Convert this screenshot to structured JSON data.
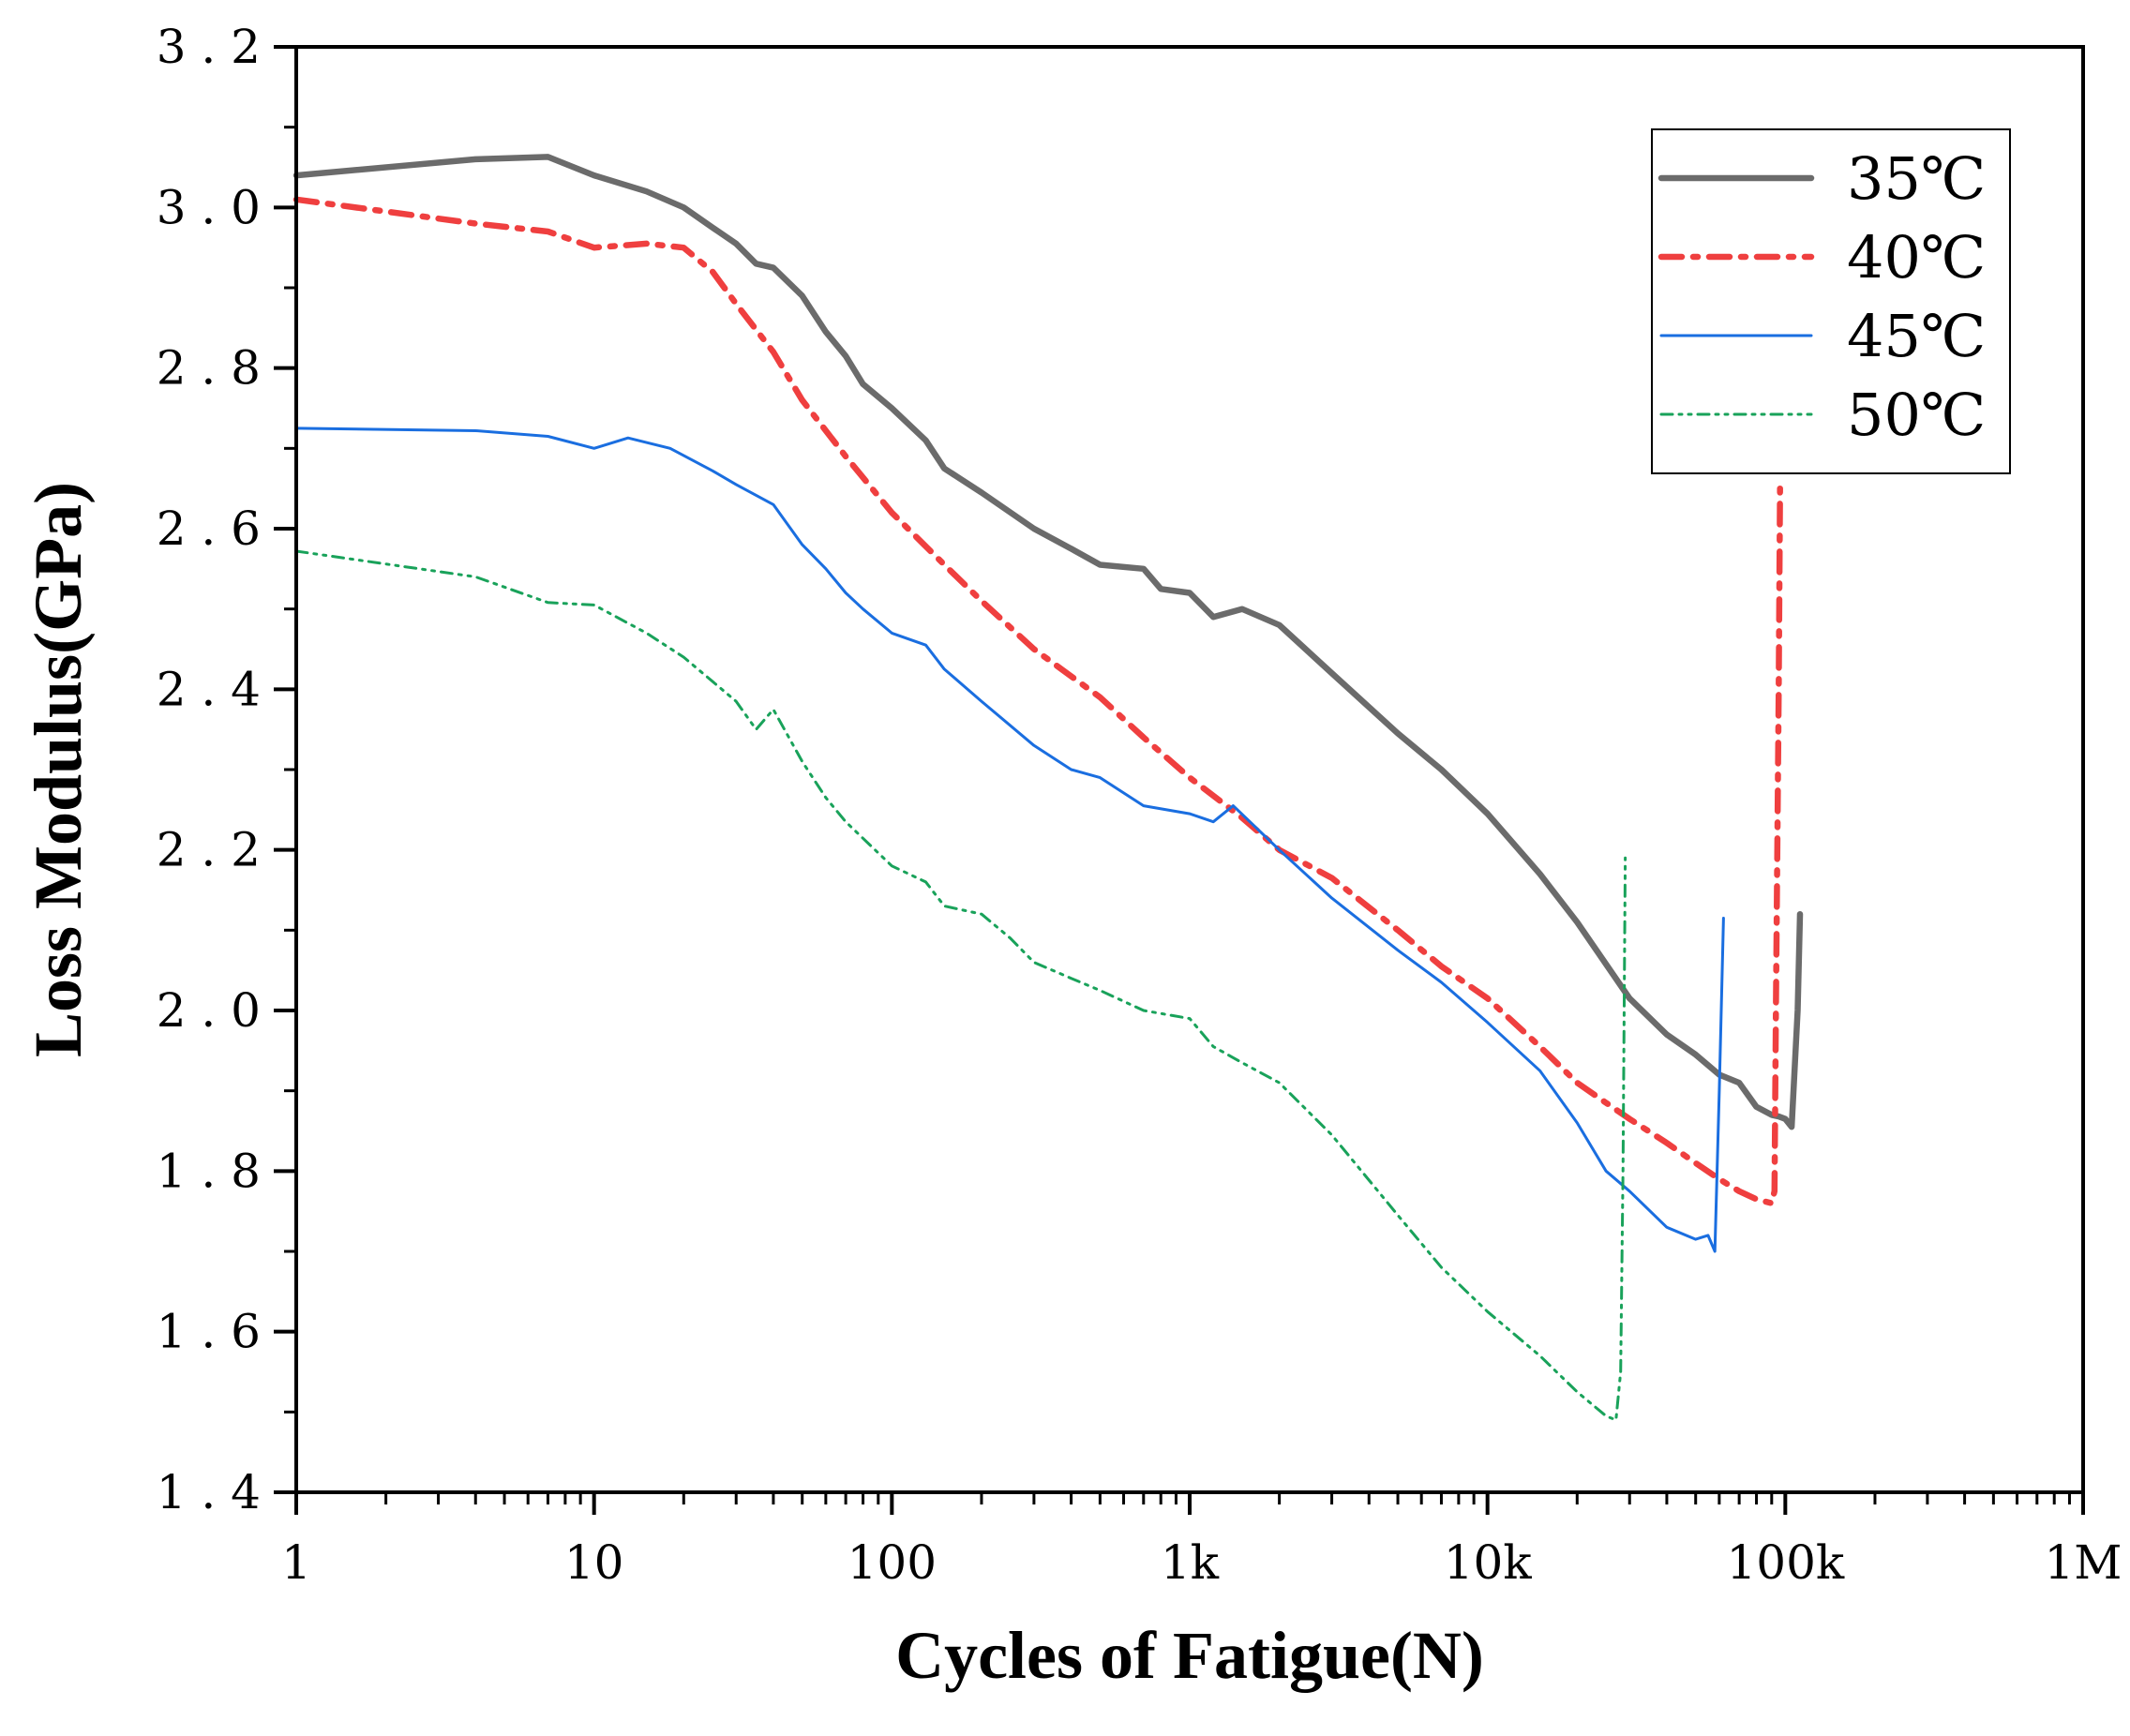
{
  "chart_data": {
    "type": "line",
    "title": "",
    "xlabel": "Cycles of Fatigue(N)",
    "ylabel": "Loss Modulus(GPa)",
    "xscale": "log",
    "xlim": [
      1,
      1000000
    ],
    "ylim": [
      1.4,
      3.2
    ],
    "xticks": [
      {
        "value": 1,
        "label": "1"
      },
      {
        "value": 10,
        "label": "10"
      },
      {
        "value": 100,
        "label": "100"
      },
      {
        "value": 1000,
        "label": "1k"
      },
      {
        "value": 10000,
        "label": "10k"
      },
      {
        "value": 100000,
        "label": "100k"
      },
      {
        "value": 1000000,
        "label": "1M"
      }
    ],
    "yticks": [
      {
        "value": 1.4,
        "label": "1.4"
      },
      {
        "value": 1.6,
        "label": "1.6"
      },
      {
        "value": 1.8,
        "label": "1.8"
      },
      {
        "value": 2.0,
        "label": "2.0"
      },
      {
        "value": 2.2,
        "label": "2.2"
      },
      {
        "value": 2.4,
        "label": "2.4"
      },
      {
        "value": 2.6,
        "label": "2.6"
      },
      {
        "value": 2.8,
        "label": "2.8"
      },
      {
        "value": 3.0,
        "label": "3.0"
      },
      {
        "value": 3.2,
        "label": "3.2"
      }
    ],
    "legend_position": "top-right",
    "grid": false,
    "series": [
      {
        "name": "35℃",
        "color": "#6b6b6b",
        "style": "solid",
        "weight": "thick",
        "x": [
          1,
          4,
          7,
          10,
          15,
          20,
          25,
          30,
          35,
          40,
          50,
          60,
          70,
          80,
          100,
          130,
          150,
          200,
          300,
          400,
          500,
          700,
          800,
          1000,
          1200,
          1500,
          2000,
          3000,
          5000,
          7000,
          10000,
          15000,
          20000,
          30000,
          40000,
          50000,
          60000,
          70000,
          80000,
          90000,
          95000,
          100000,
          105000,
          110000,
          112000
        ],
        "values": [
          3.04,
          3.06,
          3.063,
          3.04,
          3.02,
          3.0,
          2.975,
          2.955,
          2.93,
          2.925,
          2.89,
          2.845,
          2.815,
          2.78,
          2.75,
          2.71,
          2.675,
          2.645,
          2.6,
          2.575,
          2.555,
          2.55,
          2.525,
          2.52,
          2.49,
          2.5,
          2.48,
          2.42,
          2.345,
          2.3,
          2.245,
          2.17,
          2.11,
          2.015,
          1.97,
          1.945,
          1.92,
          1.91,
          1.88,
          1.87,
          1.868,
          1.865,
          1.855,
          2.0,
          2.12
        ]
      },
      {
        "name": "40℃",
        "color": "#ef3f3f",
        "style": "dashdot",
        "weight": "thick",
        "x": [
          1,
          4,
          7,
          10,
          15,
          20,
          25,
          30,
          40,
          50,
          70,
          100,
          150,
          200,
          300,
          500,
          700,
          1000,
          1500,
          2000,
          3000,
          5000,
          7000,
          10000,
          15000,
          20000,
          25000,
          30000,
          40000,
          50000,
          60000,
          70000,
          80000,
          90000,
          92000,
          93000,
          95000,
          96000
        ],
        "values": [
          3.01,
          2.98,
          2.97,
          2.95,
          2.955,
          2.95,
          2.92,
          2.88,
          2.82,
          2.76,
          2.69,
          2.62,
          2.555,
          2.51,
          2.45,
          2.39,
          2.34,
          2.29,
          2.24,
          2.2,
          2.165,
          2.1,
          2.055,
          2.015,
          1.955,
          1.91,
          1.885,
          1.865,
          1.835,
          1.81,
          1.79,
          1.775,
          1.765,
          1.76,
          1.775,
          2.0,
          2.4,
          2.65
        ]
      },
      {
        "name": "45℃",
        "color": "#1a6ee0",
        "style": "solid",
        "weight": "thin",
        "x": [
          1,
          4,
          7,
          10,
          13,
          18,
          25,
          30,
          40,
          50,
          60,
          70,
          80,
          100,
          130,
          150,
          200,
          300,
          400,
          500,
          700,
          1000,
          1200,
          1400,
          2000,
          3000,
          5000,
          7000,
          10000,
          15000,
          20000,
          25000,
          30000,
          40000,
          50000,
          55000,
          58000,
          60000,
          62000
        ],
        "values": [
          2.725,
          2.722,
          2.715,
          2.7,
          2.713,
          2.7,
          2.672,
          2.655,
          2.63,
          2.58,
          2.55,
          2.52,
          2.5,
          2.47,
          2.455,
          2.425,
          2.385,
          2.33,
          2.3,
          2.29,
          2.255,
          2.245,
          2.235,
          2.255,
          2.2,
          2.14,
          2.075,
          2.035,
          1.985,
          1.925,
          1.86,
          1.8,
          1.775,
          1.73,
          1.715,
          1.72,
          1.7,
          1.9,
          2.115
        ]
      },
      {
        "name": "50℃",
        "color": "#19a25a",
        "style": "dashdotdot",
        "weight": "thin",
        "x": [
          1,
          4,
          7,
          10,
          15,
          20,
          30,
          35,
          40,
          50,
          60,
          70,
          100,
          130,
          150,
          200,
          250,
          300,
          400,
          500,
          700,
          1000,
          1200,
          1500,
          2000,
          3000,
          5000,
          7000,
          10000,
          15000,
          20000,
          25000,
          27000,
          28000,
          28500,
          29000
        ],
        "values": [
          2.572,
          2.54,
          2.508,
          2.505,
          2.47,
          2.44,
          2.385,
          2.35,
          2.375,
          2.31,
          2.265,
          2.235,
          2.18,
          2.16,
          2.13,
          2.12,
          2.09,
          2.06,
          2.04,
          2.025,
          2.0,
          1.99,
          1.955,
          1.935,
          1.91,
          1.845,
          1.745,
          1.68,
          1.625,
          1.57,
          1.525,
          1.495,
          1.49,
          1.55,
          1.8,
          2.19
        ]
      }
    ]
  }
}
